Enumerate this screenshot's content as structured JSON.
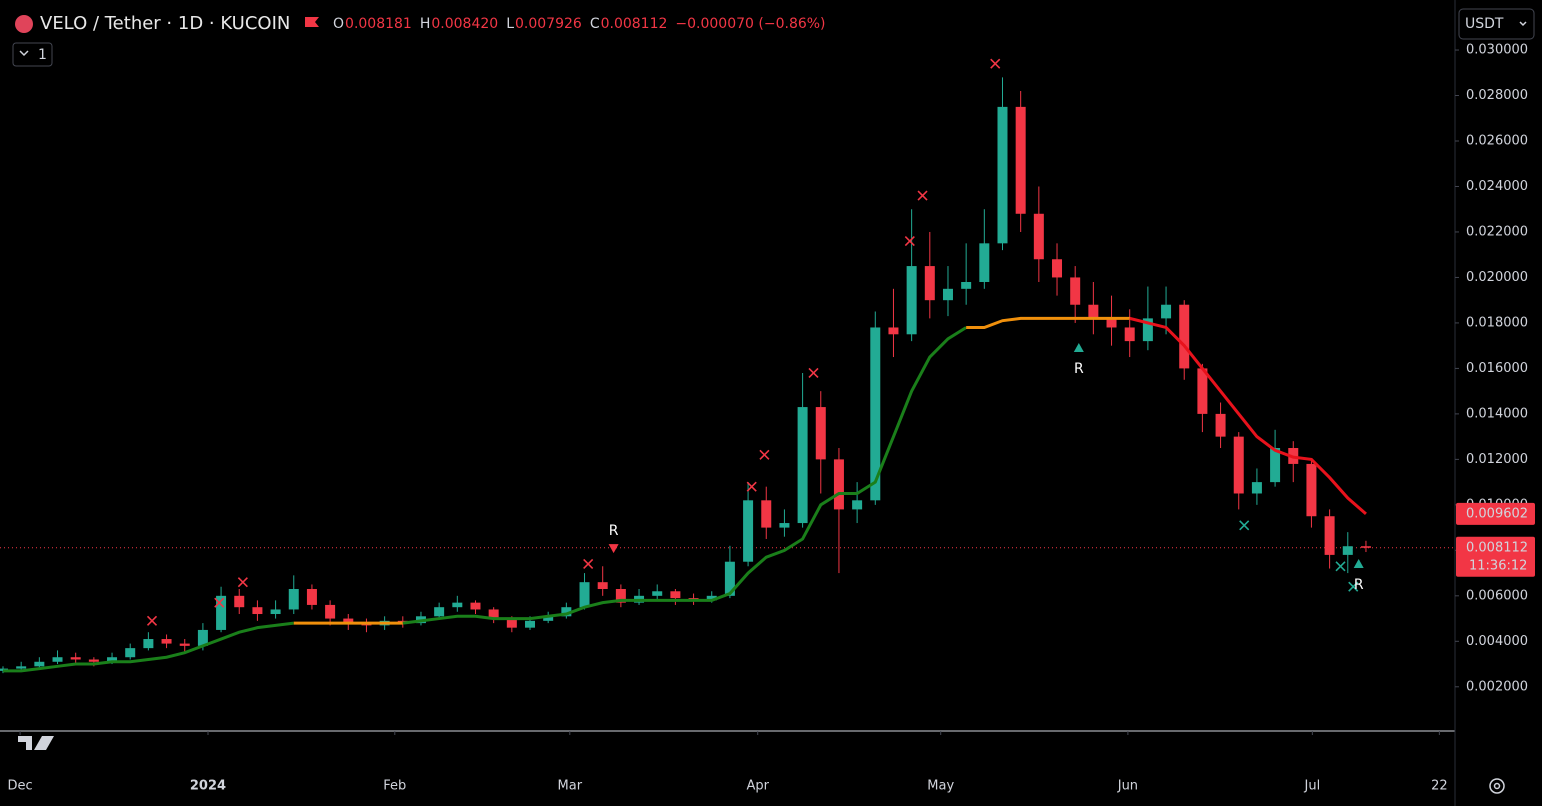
{
  "chart_data": {
    "type": "candlestick",
    "title": "VELO / Tether · 1D · KUCOIN",
    "header_fields": [
      {
        "label": "O",
        "value": 0.008181
      },
      {
        "label": "H",
        "value": 0.00842,
        "value_label": "0.008420"
      },
      {
        "label": "L",
        "value": 0.007926
      },
      {
        "label": "C",
        "value": 0.008112
      }
    ],
    "change": "−0.000070 (−0.86%)",
    "currency": "USDT",
    "interval_button": "1",
    "countdown": "11:36:12",
    "up_color": "#22ab94",
    "down_color": "#f23645",
    "categories": [
      null,
      null,
      null,
      null,
      null,
      null,
      null,
      null,
      null,
      null,
      null,
      null,
      null,
      null,
      null,
      null,
      null,
      null,
      null,
      null,
      null,
      null,
      null,
      null,
      null,
      null,
      null,
      null,
      null,
      null,
      null,
      null,
      null,
      null,
      null,
      null,
      null,
      null,
      null,
      null,
      null,
      null,
      null,
      null,
      null,
      null,
      null,
      null,
      null,
      null,
      null,
      null,
      null,
      null,
      null,
      null,
      null,
      null,
      null,
      null,
      null,
      null,
      null,
      null,
      null,
      null,
      null,
      null,
      null,
      null,
      null,
      null,
      null,
      null,
      null,
      null
    ],
    "open": [
      0.0027,
      0.0028,
      0.0029,
      0.0031,
      0.0033,
      0.0032,
      0.0031,
      0.0033,
      0.0037,
      0.0041,
      0.0039,
      0.0038,
      0.0045,
      0.006,
      0.0055,
      0.0052,
      0.0054,
      0.0063,
      0.0056,
      0.005,
      0.0048,
      0.0047,
      0.0049,
      0.0048,
      0.0051,
      0.0055,
      0.0057,
      0.0054,
      0.005,
      0.0046,
      0.0049,
      0.0051,
      0.0055,
      0.0066,
      0.0063,
      0.0057,
      0.006,
      0.0062,
      0.0059,
      0.0058,
      0.006,
      0.0075,
      0.0102,
      0.009,
      0.0092,
      0.0143,
      0.012,
      0.0098,
      0.0102,
      0.0178,
      0.0175,
      0.0205,
      0.019,
      0.0195,
      0.0198,
      0.0215,
      0.0275,
      0.0228,
      0.0208,
      0.02,
      0.0188,
      0.0182,
      0.0178,
      0.0172,
      0.0182,
      0.0188,
      0.016,
      0.014,
      0.013,
      0.0105,
      0.011,
      0.0125,
      0.0118,
      0.0095,
      0.0078,
      0.008181
    ],
    "high": [
      0.0029,
      0.0031,
      0.0033,
      0.0036,
      0.0035,
      0.0033,
      0.0035,
      0.0039,
      0.0044,
      0.0043,
      0.0041,
      0.0048,
      0.0064,
      0.0063,
      0.0058,
      0.0058,
      0.0069,
      0.0065,
      0.0058,
      0.0052,
      0.005,
      0.0051,
      0.0051,
      0.0053,
      0.0057,
      0.006,
      0.0058,
      0.0055,
      0.0051,
      0.0051,
      0.0053,
      0.0057,
      0.007,
      0.0073,
      0.0065,
      0.0063,
      0.0065,
      0.0063,
      0.0061,
      0.0062,
      0.0082,
      0.011,
      0.0108,
      0.0098,
      0.0158,
      0.015,
      0.0125,
      0.011,
      0.0185,
      0.0195,
      0.023,
      0.022,
      0.0205,
      0.0215,
      0.023,
      0.0288,
      0.0282,
      0.024,
      0.0215,
      0.0205,
      0.0198,
      0.0192,
      0.0186,
      0.0196,
      0.0196,
      0.019,
      0.0162,
      0.0145,
      0.0132,
      0.0116,
      0.0133,
      0.0128,
      0.012,
      0.0098,
      0.0088,
      0.00842
    ],
    "low": [
      0.0026,
      0.0027,
      0.0028,
      0.003,
      0.003,
      0.0029,
      0.003,
      0.0032,
      0.0036,
      0.0037,
      0.0035,
      0.0036,
      0.0044,
      0.0052,
      0.0049,
      0.005,
      0.0052,
      0.0054,
      0.0047,
      0.0045,
      0.0044,
      0.0045,
      0.0046,
      0.0047,
      0.005,
      0.0053,
      0.0052,
      0.0048,
      0.0044,
      0.0045,
      0.0048,
      0.005,
      0.0054,
      0.006,
      0.0055,
      0.0056,
      0.0058,
      0.0056,
      0.0056,
      0.0057,
      0.0059,
      0.0073,
      0.0085,
      0.0086,
      0.009,
      0.0105,
      0.007,
      0.0092,
      0.01,
      0.0165,
      0.0172,
      0.0182,
      0.0183,
      0.0188,
      0.0195,
      0.0212,
      0.022,
      0.0198,
      0.0192,
      0.018,
      0.0175,
      0.017,
      0.0165,
      0.0168,
      0.0175,
      0.0155,
      0.0132,
      0.0125,
      0.0098,
      0.01,
      0.0108,
      0.011,
      0.009,
      0.0072,
      0.007,
      0.007926
    ],
    "close": [
      0.0028,
      0.0029,
      0.0031,
      0.0033,
      0.0032,
      0.0031,
      0.0033,
      0.0037,
      0.0041,
      0.0039,
      0.0038,
      0.0045,
      0.006,
      0.0055,
      0.0052,
      0.0054,
      0.0063,
      0.0056,
      0.005,
      0.0048,
      0.0047,
      0.0049,
      0.0048,
      0.0051,
      0.0055,
      0.0057,
      0.0054,
      0.005,
      0.0046,
      0.0049,
      0.0051,
      0.0055,
      0.0066,
      0.0063,
      0.0057,
      0.006,
      0.0062,
      0.0059,
      0.0058,
      0.006,
      0.0075,
      0.0102,
      0.009,
      0.0092,
      0.0143,
      0.012,
      0.0098,
      0.0102,
      0.0178,
      0.0175,
      0.0205,
      0.019,
      0.0195,
      0.0198,
      0.0215,
      0.0275,
      0.0228,
      0.0208,
      0.02,
      0.0188,
      0.0182,
      0.0178,
      0.0172,
      0.0182,
      0.0188,
      0.016,
      0.014,
      0.013,
      0.0105,
      0.011,
      0.0125,
      0.0118,
      0.0095,
      0.0078,
      0.008181,
      0.008112
    ],
    "trend_segments": [
      {
        "color": "#1a7f1a",
        "x": [
          0,
          1,
          2,
          3,
          4,
          5,
          6,
          7,
          8,
          9,
          10,
          11,
          12,
          13,
          14,
          15,
          16
        ],
        "values": [
          0.0027,
          0.0027,
          0.0028,
          0.0029,
          0.003,
          0.003,
          0.0031,
          0.0031,
          0.0032,
          0.0033,
          0.0035,
          0.0038,
          0.0041,
          0.0044,
          0.0046,
          0.0047,
          0.0048
        ]
      },
      {
        "color": "#f0900c",
        "x": [
          16,
          17,
          18,
          19,
          20,
          21,
          22
        ],
        "values": [
          0.0048,
          0.0048,
          0.0048,
          0.0048,
          0.0048,
          0.0048,
          0.0048
        ]
      },
      {
        "color": "#1a7f1a",
        "x": [
          22,
          23,
          24,
          25,
          26,
          27,
          28,
          29,
          30,
          31,
          32,
          33,
          34,
          35,
          36,
          37,
          38,
          39,
          40,
          41,
          42,
          43,
          44,
          45,
          46,
          47,
          48,
          49,
          50,
          51,
          52,
          53
        ],
        "values": [
          0.0048,
          0.0049,
          0.005,
          0.0051,
          0.0051,
          0.005,
          0.005,
          0.005,
          0.0051,
          0.0052,
          0.0055,
          0.0057,
          0.0058,
          0.0058,
          0.0058,
          0.0058,
          0.0058,
          0.0058,
          0.0061,
          0.007,
          0.0077,
          0.008,
          0.0085,
          0.01,
          0.0105,
          0.0105,
          0.011,
          0.013,
          0.015,
          0.0165,
          0.0173,
          0.0178
        ]
      },
      {
        "color": "#f0900c",
        "x": [
          53,
          54,
          55,
          56,
          57,
          58,
          59,
          60,
          61,
          62
        ],
        "values": [
          0.0178,
          0.0178,
          0.0181,
          0.0182,
          0.0182,
          0.0182,
          0.0182,
          0.0182,
          0.0182,
          0.0182
        ]
      },
      {
        "color": "#e8121c",
        "x": [
          62,
          63,
          64,
          65,
          66,
          67,
          68,
          69,
          70,
          71,
          72,
          73,
          74,
          75
        ],
        "values": [
          0.0182,
          0.018,
          0.0178,
          0.017,
          0.016,
          0.015,
          0.014,
          0.013,
          0.0124,
          0.0121,
          0.012,
          0.0112,
          0.0103,
          0.009602
        ]
      }
    ],
    "cross_marks": [
      {
        "x": 8.2,
        "y": 0.0049,
        "color": "#f23645"
      },
      {
        "x": 11.9,
        "y": 0.0057,
        "color": "#f23645"
      },
      {
        "x": 13.2,
        "y": 0.0066,
        "color": "#f23645"
      },
      {
        "x": 32.2,
        "y": 0.0074,
        "color": "#f23645"
      },
      {
        "x": 41.2,
        "y": 0.0108,
        "color": "#f23645"
      },
      {
        "x": 41.9,
        "y": 0.0122,
        "color": "#f23645"
      },
      {
        "x": 44.6,
        "y": 0.0158,
        "color": "#f23645"
      },
      {
        "x": 49.9,
        "y": 0.0216,
        "color": "#f23645"
      },
      {
        "x": 50.6,
        "y": 0.0236,
        "color": "#f23645"
      },
      {
        "x": 54.6,
        "y": 0.0294,
        "color": "#f23645"
      },
      {
        "x": 68.3,
        "y": 0.0091,
        "color": "#22ab94"
      },
      {
        "x": 73.6,
        "y": 0.0073,
        "color": "#22ab94"
      },
      {
        "x": 74.3,
        "y": 0.0064,
        "color": "#22ab94"
      }
    ],
    "annotations": [
      {
        "text": "R",
        "x": 33.6,
        "y": 0.0081,
        "color": "#f23645",
        "triangle": "down"
      },
      {
        "text": "R",
        "x": 59.2,
        "y": 0.0169,
        "color": "#22ab94",
        "triangle": "up"
      },
      {
        "text": "R",
        "x": 74.6,
        "y": 0.0074,
        "color": "#22ab94",
        "triangle": "up"
      }
    ],
    "price_tags": [
      {
        "value": 0.009602,
        "color": "#f23645"
      },
      {
        "value": 0.008112,
        "color": "#f23645"
      }
    ],
    "ylim": [
      0.0001,
      0.0322
    ],
    "yticks": [
      {
        "value": 0.002,
        "label": "0.002000"
      },
      {
        "value": 0.004,
        "label": "0.004000"
      },
      {
        "value": 0.006,
        "label": "0.006000"
      },
      {
        "value": 0.008,
        "label": "0.008000"
      },
      {
        "value": 0.01,
        "label": "0.010000"
      },
      {
        "value": 0.012,
        "label": "0.012000"
      },
      {
        "value": 0.014,
        "label": "0.014000"
      },
      {
        "value": 0.016,
        "label": "0.016000"
      },
      {
        "value": 0.018,
        "label": "0.018000"
      },
      {
        "value": 0.02,
        "label": "0.020000"
      },
      {
        "value": 0.022,
        "label": "0.022000"
      },
      {
        "value": 0.024,
        "label": "0.024000"
      },
      {
        "value": 0.026,
        "label": "0.026000"
      },
      {
        "value": 0.028,
        "label": "0.028000"
      },
      {
        "value": 0.03,
        "label": "0.030000"
      }
    ],
    "xlim": [
      -0.165,
      79.9
    ],
    "xticks": [
      {
        "value": 0.94,
        "label": "Dec"
      },
      {
        "value": 11.28,
        "label": "2024"
      },
      {
        "value": 21.56,
        "label": "Feb"
      },
      {
        "value": 31.19,
        "label": "Mar"
      },
      {
        "value": 41.53,
        "label": "Apr"
      },
      {
        "value": 51.6,
        "label": "May"
      },
      {
        "value": 61.9,
        "label": "Jun"
      },
      {
        "value": 72.05,
        "label": "Jul"
      },
      {
        "value": 79.04,
        "label": "22"
      }
    ],
    "grid": false
  }
}
